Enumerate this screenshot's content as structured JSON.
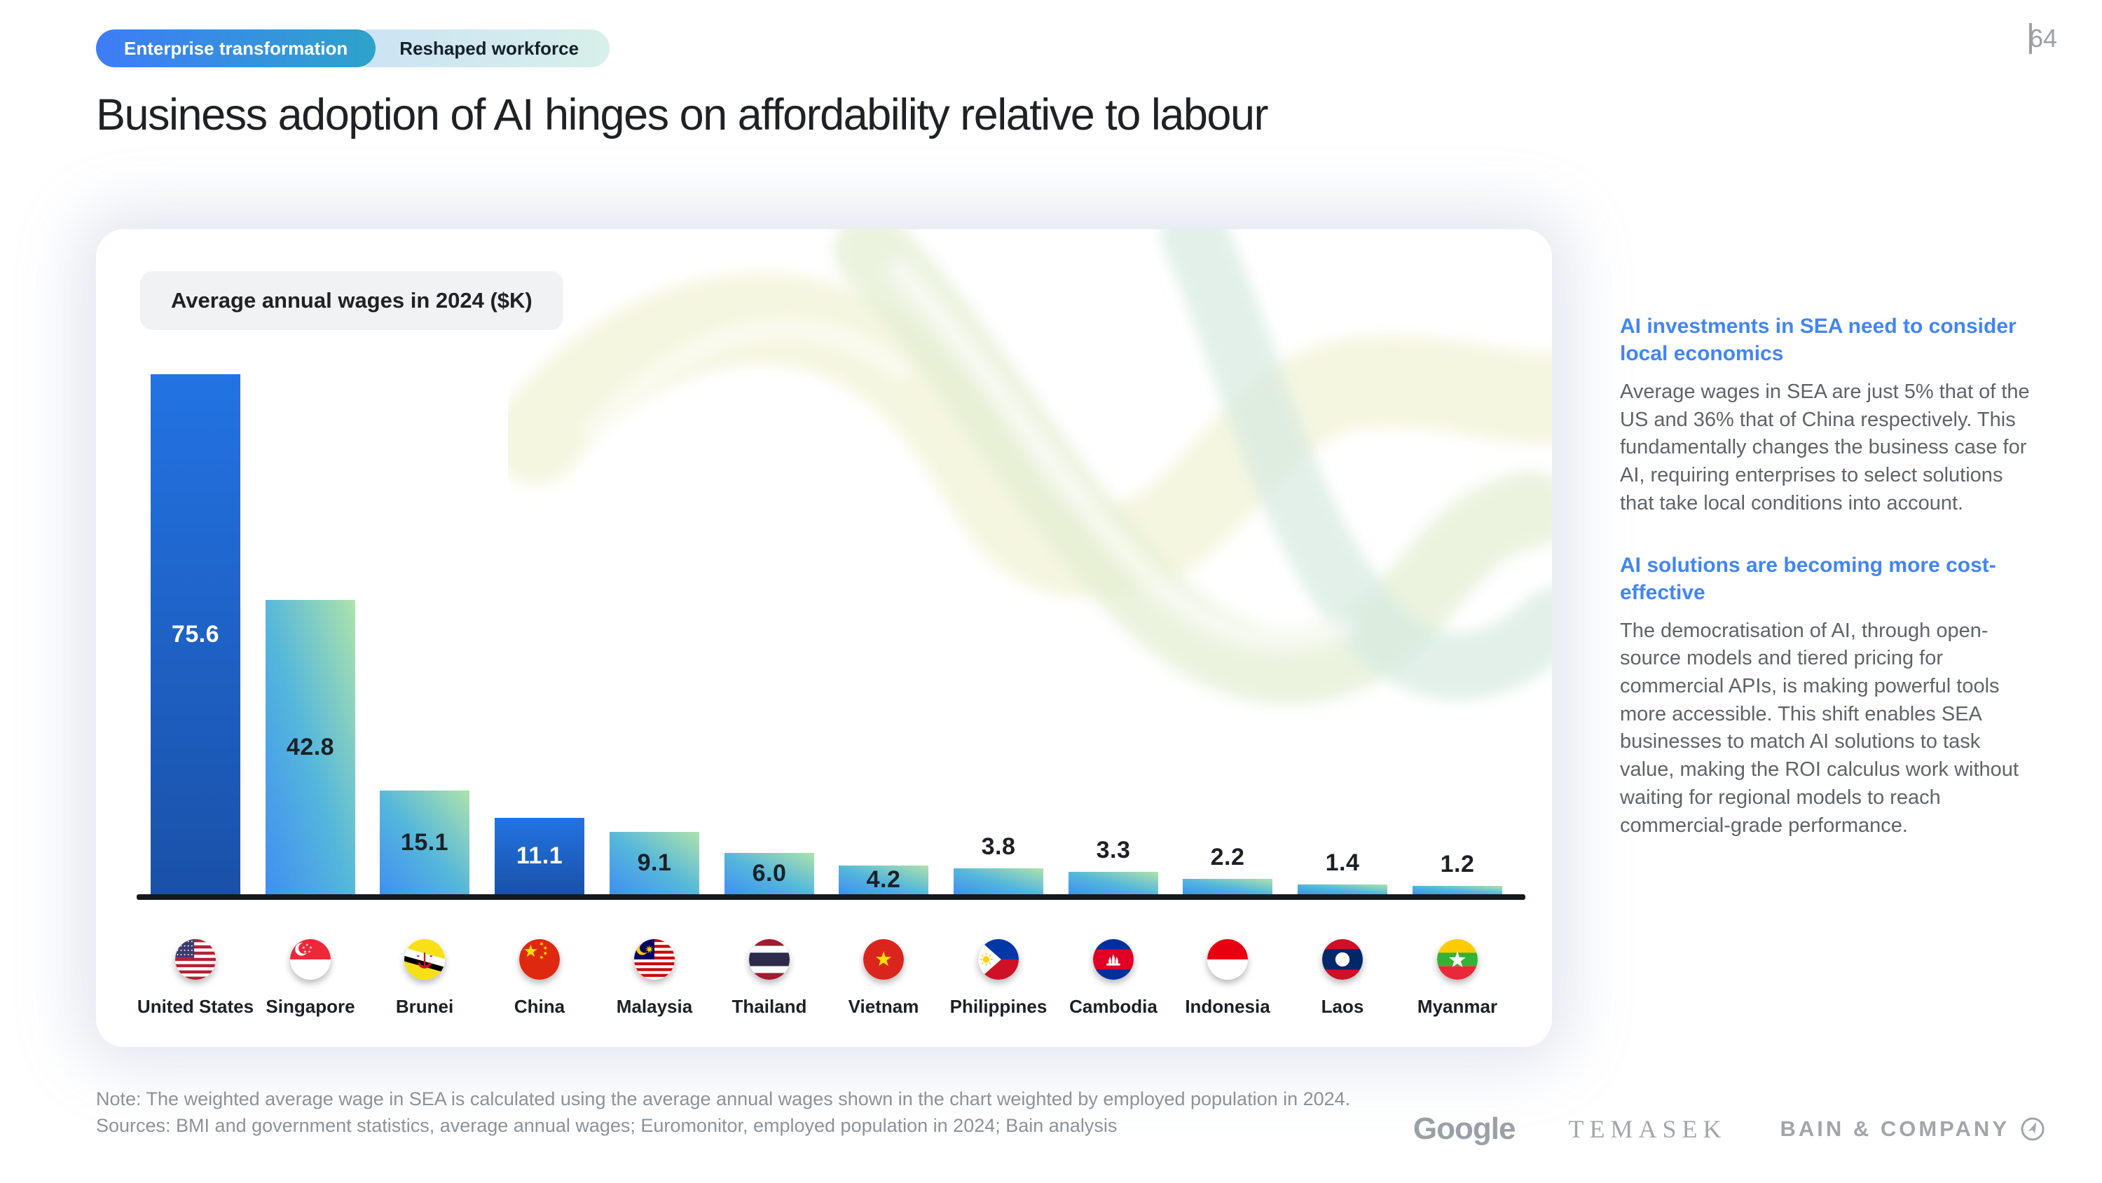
{
  "page": {
    "number": "64"
  },
  "tags": [
    {
      "label": "Enterprise transformation"
    },
    {
      "label": "Reshaped workforce"
    }
  ],
  "title": "Business adoption of AI hinges on affordability relative to labour",
  "chart_data": {
    "type": "bar",
    "title": "Average annual wages in 2024 ($K)",
    "categories": [
      "United States",
      "Singapore",
      "Brunei",
      "China",
      "Malaysia",
      "Thailand",
      "Vietnam",
      "Philippines",
      "Cambodia",
      "Indonesia",
      "Laos",
      "Myanmar"
    ],
    "values": [
      75.6,
      42.8,
      15.1,
      11.1,
      9.1,
      6.0,
      4.2,
      3.8,
      3.3,
      2.2,
      1.4,
      1.2
    ],
    "value_labels": [
      "75.6",
      "42.8",
      "15.1",
      "11.1",
      "9.1",
      "6.0",
      "4.2",
      "3.8",
      "3.3",
      "2.2",
      "1.4",
      "1.2"
    ],
    "flags": [
      "us",
      "sg",
      "bn",
      "cn",
      "my",
      "th",
      "vn",
      "ph",
      "kh",
      "id",
      "la",
      "mm"
    ],
    "bar_styles": [
      "navy",
      "sea",
      "sea",
      "navy",
      "sea",
      "sea",
      "sea",
      "sea",
      "sea",
      "sea",
      "sea",
      "sea"
    ],
    "xlabel": "",
    "ylabel": "",
    "ylim": [
      0,
      80
    ],
    "grid": false,
    "legend": "none"
  },
  "sidebar": {
    "sections": [
      {
        "heading": "AI investments in SEA need to consider local economics",
        "body": "Average wages in SEA are just 5% that of the US and 36% that of China respectively. This fundamentally changes the business case for AI, requiring enterprises to select solutions that take local conditions into account."
      },
      {
        "heading": "AI solutions are becoming more cost-effective",
        "body": "The democratisation of AI, through open-source models and tiered pricing for commercial APIs, is making powerful tools more accessible. This shift enables SEA businesses to match AI solutions to task value, making the ROI calculus work without waiting for regional models to reach commercial-grade performance."
      }
    ]
  },
  "footnote": {
    "note": "Note: The weighted average wage in SEA is calculated using the average annual wages shown in the chart weighted by employed population in 2024.",
    "sources": "Sources: BMI and government statistics, average annual wages; Euromonitor, employed population in 2024; Bain analysis"
  },
  "logos": [
    {
      "name": "Google"
    },
    {
      "name": "TEMASEK"
    },
    {
      "name": "BAIN & COMPANY"
    }
  ],
  "colors": {
    "accent_blue": "#4285F4",
    "navy_bar_top": "#2373E3",
    "navy_bar_bottom": "#1A51A8",
    "sea_bar_blue": "#3F8FF2",
    "sea_bar_green": "#AEE3AC",
    "axis": "#15181D",
    "tag_gradient_start": "#3E7CF7",
    "tag_gradient_end": "#2EA3CB",
    "body_gray": "#5f6368",
    "footnote_gray": "#8d9297"
  }
}
